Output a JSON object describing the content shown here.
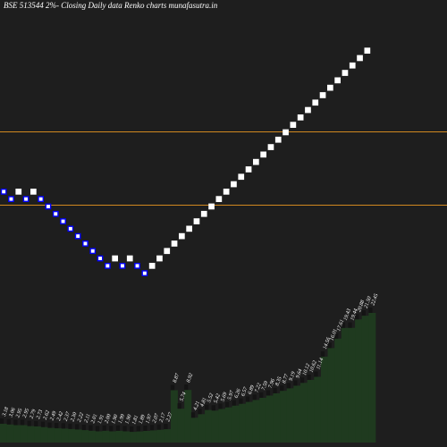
{
  "chart_data": {
    "type": "renko",
    "title": "BSE 513544  2%-  Closing Daily data  Renko  charts munafasutra.in",
    "colors": {
      "background": "#1e1e1e",
      "up_brick": "#ffffff",
      "down_brick": "#0000ff",
      "down_brick_inner": "#ffffff",
      "reference_line": "#d08820",
      "volume_area": "#1f3a1f"
    },
    "reference_lines": [
      "upper",
      "lower"
    ],
    "bricks": [
      {
        "dir": "down"
      },
      {
        "dir": "down"
      },
      {
        "dir": "up"
      },
      {
        "dir": "down"
      },
      {
        "dir": "up"
      },
      {
        "dir": "down"
      },
      {
        "dir": "down"
      },
      {
        "dir": "down"
      },
      {
        "dir": "down"
      },
      {
        "dir": "down"
      },
      {
        "dir": "down"
      },
      {
        "dir": "down"
      },
      {
        "dir": "down"
      },
      {
        "dir": "down"
      },
      {
        "dir": "down"
      },
      {
        "dir": "up"
      },
      {
        "dir": "down"
      },
      {
        "dir": "up"
      },
      {
        "dir": "down"
      },
      {
        "dir": "down"
      },
      {
        "dir": "up"
      },
      {
        "dir": "up"
      },
      {
        "dir": "up"
      },
      {
        "dir": "up"
      },
      {
        "dir": "up"
      },
      {
        "dir": "up"
      },
      {
        "dir": "up"
      },
      {
        "dir": "up"
      },
      {
        "dir": "up"
      },
      {
        "dir": "up"
      },
      {
        "dir": "up"
      },
      {
        "dir": "up"
      },
      {
        "dir": "up"
      },
      {
        "dir": "up"
      },
      {
        "dir": "up"
      },
      {
        "dir": "up"
      },
      {
        "dir": "up"
      },
      {
        "dir": "up"
      },
      {
        "dir": "up"
      },
      {
        "dir": "up"
      },
      {
        "dir": "up"
      },
      {
        "dir": "up"
      },
      {
        "dir": "up"
      },
      {
        "dir": "up"
      },
      {
        "dir": "up"
      },
      {
        "dir": "up"
      },
      {
        "dir": "up"
      },
      {
        "dir": "up"
      },
      {
        "dir": "up"
      },
      {
        "dir": "up"
      }
    ],
    "volume_labels": [
      "3.18",
      "3.06",
      "2.95",
      "2.95",
      "2.79",
      "2.73",
      "2.62",
      "2.49",
      "2.42",
      "2.37",
      "2.30",
      "2.22",
      "2.11",
      "2.01",
      "1.91",
      "2.00",
      "1.90",
      "1.99",
      "1.90",
      "1.81",
      "1.89",
      "1.97",
      "2.07",
      "2.17",
      "2.27",
      "8.87",
      "5.74",
      "8.92",
      "4.21",
      "4.81",
      "5.52",
      "5.42",
      "5.69",
      "5.97",
      "6.26",
      "6.57",
      "6.89",
      "7.22",
      "7.59",
      "7.96",
      "8.35",
      "8.77",
      "9.19",
      "9.64",
      "10.12",
      "10.62",
      "11.14",
      "14.56",
      "16.01",
      "17.61",
      "19.43",
      "19.44",
      "20.88",
      "21.50",
      "22.45"
    ],
    "volume_values": [
      3.18,
      3.06,
      2.95,
      2.95,
      2.79,
      2.73,
      2.62,
      2.49,
      2.42,
      2.37,
      2.3,
      2.22,
      2.11,
      2.01,
      1.91,
      2.0,
      1.9,
      1.99,
      1.9,
      1.81,
      1.89,
      1.97,
      2.07,
      2.17,
      2.27,
      8.87,
      5.74,
      8.92,
      4.21,
      4.81,
      5.52,
      5.42,
      5.69,
      5.97,
      6.26,
      6.57,
      6.89,
      7.22,
      7.59,
      7.96,
      8.35,
      8.77,
      9.19,
      9.64,
      10.12,
      10.62,
      11.14,
      14.56,
      16.01,
      17.61,
      19.43,
      19.44,
      20.88,
      21.5,
      22.45
    ]
  }
}
